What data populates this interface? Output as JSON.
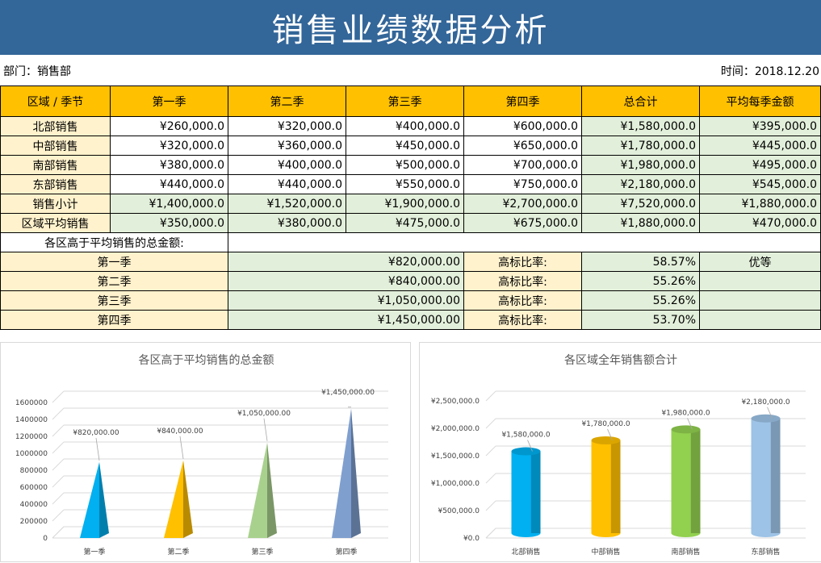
{
  "header": {
    "title": "销售业绩数据分析"
  },
  "meta": {
    "department": "部门：销售部",
    "time": "时间：2018.12.20"
  },
  "table": {
    "columns": [
      "区域 / 季节",
      "第一季",
      "第二季",
      "第三季",
      "第四季",
      "总合计",
      "平均每季金额"
    ],
    "rows": [
      [
        "北部销售",
        "¥260,000.0",
        "¥320,000.0",
        "¥400,000.0",
        "¥600,000.0",
        "¥1,580,000.0",
        "¥395,000.0"
      ],
      [
        "中部销售",
        "¥320,000.0",
        "¥360,000.0",
        "¥450,000.0",
        "¥650,000.0",
        "¥1,780,000.0",
        "¥445,000.0"
      ],
      [
        "南部销售",
        "¥380,000.0",
        "¥400,000.0",
        "¥500,000.0",
        "¥700,000.0",
        "¥1,980,000.0",
        "¥495,000.0"
      ],
      [
        "东部销售",
        "¥440,000.0",
        "¥440,000.0",
        "¥550,000.0",
        "¥750,000.0",
        "¥2,180,000.0",
        "¥545,000.0"
      ],
      [
        "销售小计",
        "¥1,400,000.0",
        "¥1,520,000.0",
        "¥1,900,000.0",
        "¥2,700,000.0",
        "¥7,520,000.0",
        "¥1,880,000.0"
      ],
      [
        "区域平均销售",
        "¥350,000.0",
        "¥380,000.0",
        "¥475,000.0",
        "¥675,000.0",
        "¥1,880,000.0",
        "¥470,000.0"
      ]
    ]
  },
  "summary": {
    "title": "各区高于平均销售的总金额:",
    "rate_label": "高标比率:",
    "rows": [
      {
        "season": "第一季",
        "amount": "¥820,000.00",
        "rate": "58.57%",
        "grade": "优等"
      },
      {
        "season": "第二季",
        "amount": "¥840,000.00",
        "rate": "55.26%",
        "grade": ""
      },
      {
        "season": "第三季",
        "amount": "¥1,050,000.00",
        "rate": "55.26%",
        "grade": ""
      },
      {
        "season": "第四季",
        "amount": "¥1,450,000.00",
        "rate": "53.70%",
        "grade": ""
      }
    ]
  },
  "chart_data": [
    {
      "type": "bar",
      "shape": "pyramid",
      "title": "各区高于平均销售的总金额",
      "categories": [
        "第一季",
        "第二季",
        "第三季",
        "第四季"
      ],
      "values": [
        820000,
        840000,
        1050000,
        1450000
      ],
      "data_labels": [
        "¥820,000.00",
        "¥840,000.00",
        "¥1,050,000.00",
        "¥1,450,000.00"
      ],
      "yticks": [
        "0",
        "200000",
        "400000",
        "600000",
        "800000",
        "1000000",
        "1200000",
        "1400000",
        "1600000"
      ],
      "ylim": [
        0,
        1600000
      ],
      "colors": [
        "#00b0f0",
        "#ffc000",
        "#a9d18e",
        "#7f9fcf"
      ],
      "grid": true
    },
    {
      "type": "bar",
      "shape": "cylinder",
      "title": "各区域全年销售额合计",
      "categories": [
        "北部销售",
        "中部销售",
        "南部销售",
        "东部销售"
      ],
      "values": [
        1580000,
        1780000,
        1980000,
        2180000
      ],
      "data_labels": [
        "¥1,580,000.0",
        "¥1,780,000.0",
        "¥1,980,000.0",
        "¥2,180,000.0"
      ],
      "yticks": [
        "¥0.0",
        "¥500,000.0",
        "¥1,000,000.0",
        "¥1,500,000.0",
        "¥2,000,000.0",
        "¥2,500,000.0"
      ],
      "ylim": [
        0,
        2500000
      ],
      "colors": [
        "#00b0f0",
        "#ffc000",
        "#92d050",
        "#9dc3e6"
      ],
      "grid": true
    }
  ]
}
